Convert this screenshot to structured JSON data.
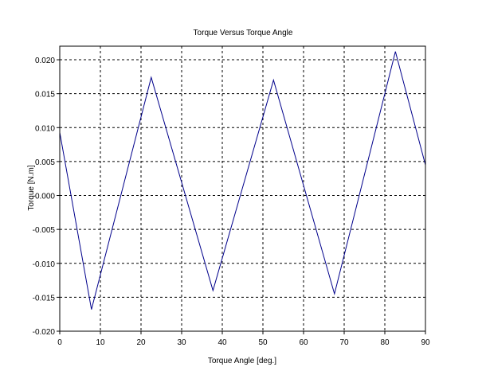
{
  "chart_data": {
    "type": "line",
    "title": "Torque Versus Torque Angle",
    "xlabel": "Torque Angle [deg.]",
    "ylabel": "Torque [N.m]",
    "xlim": [
      0,
      90
    ],
    "ylim": [
      -0.02,
      0.022
    ],
    "x_ticks": [
      0,
      10,
      20,
      30,
      40,
      50,
      60,
      70,
      80,
      90
    ],
    "x_tick_labels": [
      "0",
      "10",
      "20",
      "30",
      "40",
      "50",
      "60",
      "70",
      "80",
      "90"
    ],
    "y_ticks": [
      -0.02,
      -0.015,
      -0.01,
      -0.005,
      0.0,
      0.005,
      0.01,
      0.015,
      0.02
    ],
    "y_tick_labels": [
      "-0.020",
      "-0.015",
      "-0.010",
      "-0.005",
      "0.000",
      "0.005",
      "0.010",
      "0.015",
      "0.020"
    ],
    "grid": true,
    "grid_style": "dashed",
    "series": [
      {
        "color": "#00008b",
        "x": [
          0,
          7.8,
          22.5,
          37.7,
          52.6,
          67.6,
          82.6,
          90
        ],
        "y": [
          0.0093,
          -0.0168,
          0.0174,
          -0.014,
          0.017,
          -0.0145,
          0.0212,
          0.0045
        ]
      }
    ],
    "background": "#ffffff",
    "axis_color": "#000000",
    "grid_color": "#000000"
  }
}
